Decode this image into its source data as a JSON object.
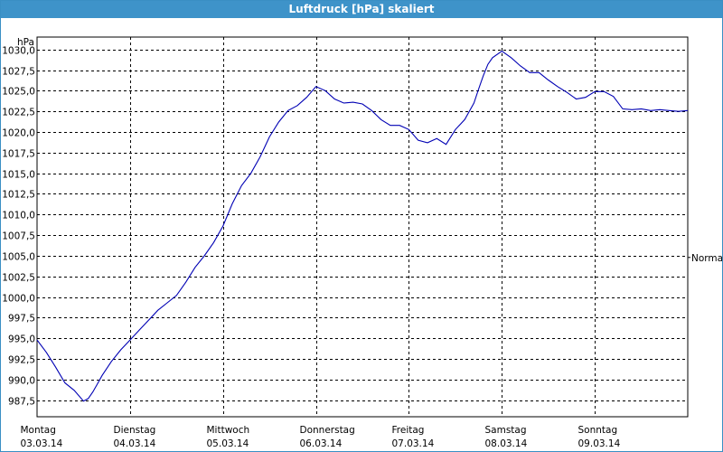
{
  "window": {
    "title": "Luftdruck [hPa] skaliert"
  },
  "colors": {
    "titlebar": "#3e93c9",
    "line": "#0000b4",
    "grid": "#000000"
  },
  "chart_data": {
    "type": "line",
    "title": "Luftdruck [hPa] skaliert",
    "unit_label": "hPa",
    "ylim": [
      985.5,
      1031.5
    ],
    "xlim": [
      0,
      7
    ],
    "grid": true,
    "y_ticks": [
      {
        "value": 987.5,
        "label": "987,5"
      },
      {
        "value": 990.0,
        "label": "990,0"
      },
      {
        "value": 992.5,
        "label": "992,5"
      },
      {
        "value": 995.0,
        "label": "995,0"
      },
      {
        "value": 997.5,
        "label": "997,5"
      },
      {
        "value": 1000.0,
        "label": "1000,0"
      },
      {
        "value": 1002.5,
        "label": "1002,5"
      },
      {
        "value": 1005.0,
        "label": "1005,0"
      },
      {
        "value": 1007.5,
        "label": "1007,5"
      },
      {
        "value": 1010.0,
        "label": "1010,0"
      },
      {
        "value": 1012.5,
        "label": "1012,5"
      },
      {
        "value": 1015.0,
        "label": "1015,0"
      },
      {
        "value": 1017.5,
        "label": "1017,5"
      },
      {
        "value": 1020.0,
        "label": "1020,0"
      },
      {
        "value": 1022.5,
        "label": "1022,5"
      },
      {
        "value": 1025.0,
        "label": "1025,0"
      },
      {
        "value": 1027.5,
        "label": "1027,5"
      },
      {
        "value": 1030.0,
        "label": "1030,0"
      }
    ],
    "x_ticks": [
      {
        "value": 0,
        "day": "Montag",
        "date": "03.03.14"
      },
      {
        "value": 1,
        "day": "Dienstag",
        "date": "04.03.14"
      },
      {
        "value": 2,
        "day": "Mittwoch",
        "date": "05.03.14"
      },
      {
        "value": 3,
        "day": "Donnerstag",
        "date": "06.03.14"
      },
      {
        "value": 4,
        "day": "Freitag",
        "date": "07.03.14"
      },
      {
        "value": 5,
        "day": "Samstag",
        "date": "08.03.14"
      },
      {
        "value": 6,
        "day": "Sonntag",
        "date": "09.03.14"
      }
    ],
    "reference_line": {
      "label": "Normal",
      "value": 1004.8
    },
    "series": [
      {
        "x": [
          0.0,
          0.1,
          0.2,
          0.3,
          0.4,
          0.5,
          0.55,
          0.6,
          0.65,
          0.7,
          0.8,
          0.9,
          1.0,
          1.1,
          1.2,
          1.3,
          1.4,
          1.5,
          1.6,
          1.7,
          1.8,
          1.9,
          2.0,
          2.1,
          2.2,
          2.3,
          2.4,
          2.5,
          2.6,
          2.7,
          2.8,
          2.9,
          3.0,
          3.1,
          3.2,
          3.3,
          3.4,
          3.5,
          3.6,
          3.7,
          3.8,
          3.9,
          4.0,
          4.1,
          4.2,
          4.3,
          4.4,
          4.5,
          4.6,
          4.7,
          4.75,
          4.8,
          4.85,
          4.9,
          5.0,
          5.1,
          5.2,
          5.3,
          5.4,
          5.5,
          5.6,
          5.7,
          5.8,
          5.9,
          6.0,
          6.1,
          6.2,
          6.3,
          6.4,
          6.5,
          6.6,
          6.7,
          6.8,
          6.9,
          7.0
        ],
        "y": [
          994.8,
          993.3,
          991.5,
          989.6,
          988.7,
          987.4,
          987.7,
          988.5,
          989.5,
          990.5,
          992.2,
          993.6,
          994.8,
          996.0,
          997.2,
          998.4,
          999.3,
          1000.2,
          1001.8,
          1003.6,
          1005.0,
          1006.6,
          1008.6,
          1011.3,
          1013.5,
          1015.0,
          1017.0,
          1019.4,
          1021.2,
          1022.6,
          1023.2,
          1024.2,
          1025.5,
          1025.0,
          1024.0,
          1023.5,
          1023.6,
          1023.4,
          1022.6,
          1021.5,
          1020.8,
          1020.8,
          1020.3,
          1019.0,
          1018.7,
          1019.2,
          1018.5,
          1020.3,
          1021.5,
          1023.5,
          1025.2,
          1026.8,
          1028.2,
          1029.0,
          1029.8,
          1029.0,
          1028.0,
          1027.2,
          1027.2,
          1026.3,
          1025.5,
          1024.8,
          1024.0,
          1024.2,
          1024.9,
          1024.9,
          1024.3,
          1022.8,
          1022.7,
          1022.8,
          1022.6,
          1022.7,
          1022.6,
          1022.5,
          1022.6
        ]
      }
    ]
  }
}
